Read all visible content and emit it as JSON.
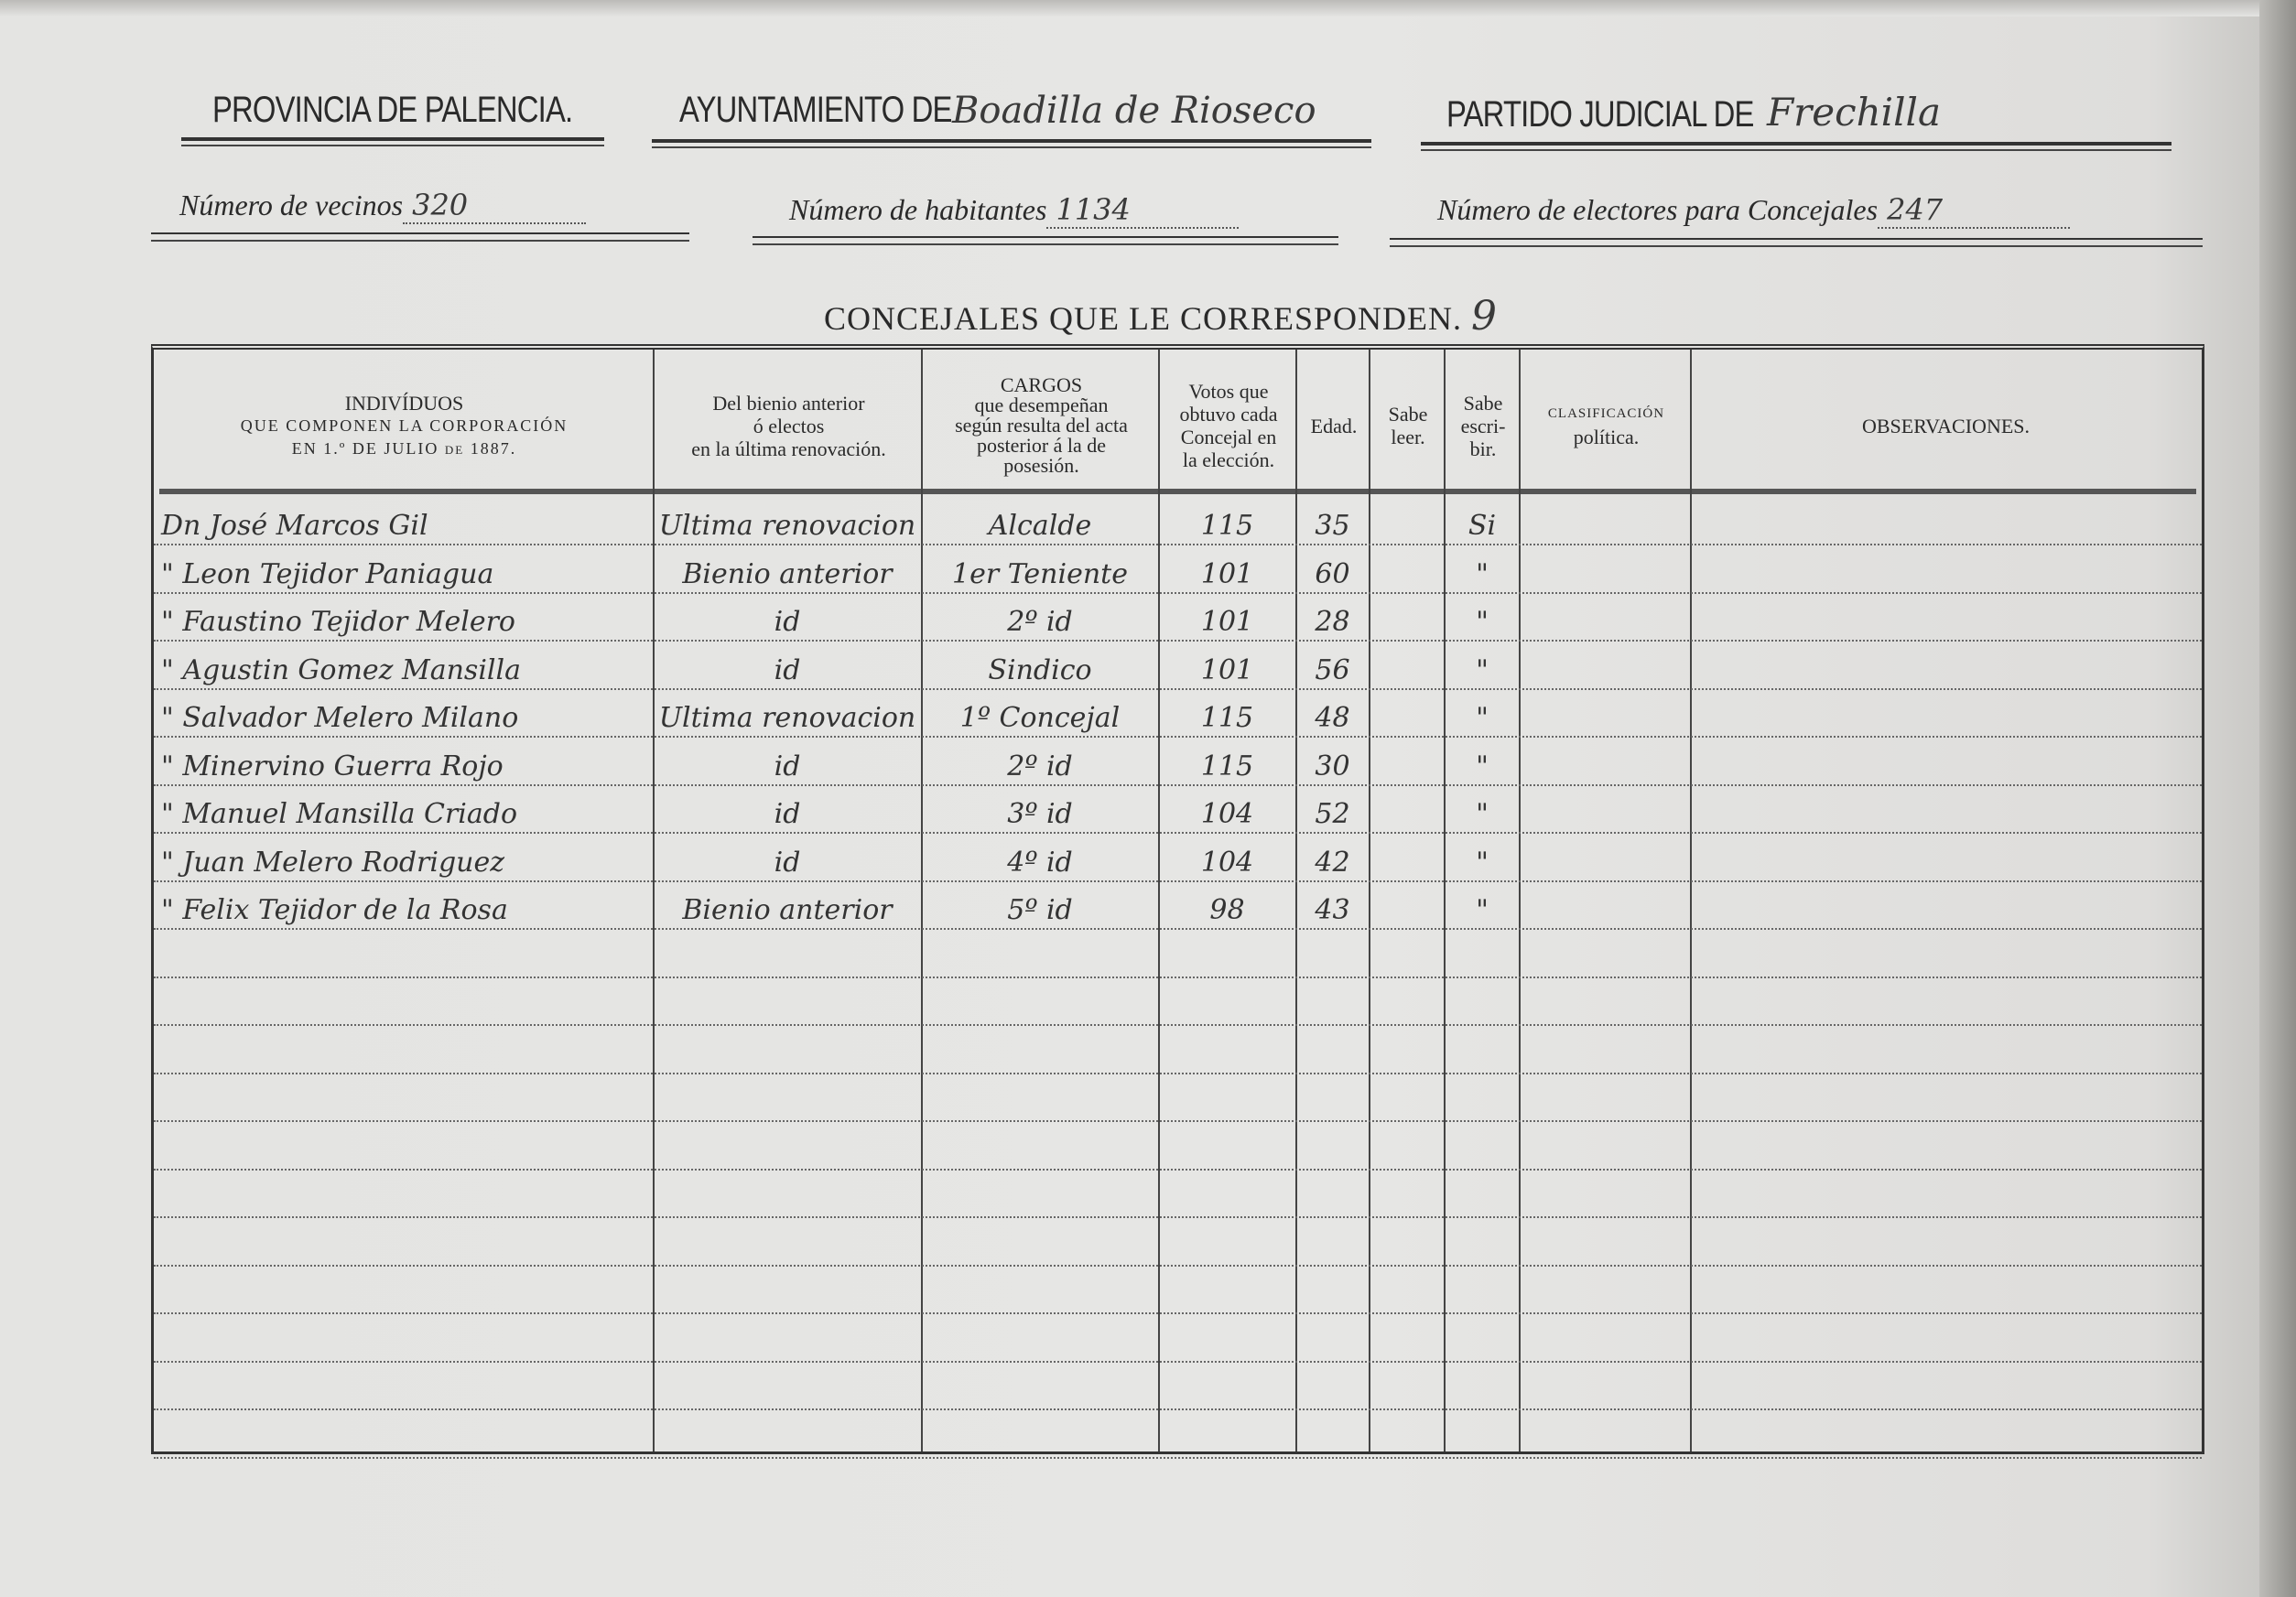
{
  "header": {
    "provincia": "PROVINCIA DE PALENCIA.",
    "ayuntamiento_label": "AYUNTAMIENTO DE",
    "ayuntamiento_value": "Boadilla de Rioseco",
    "partido_label": "PARTIDO JUDICIAL DE",
    "partido_value": "Frechilla"
  },
  "stats": {
    "vecinos_label": "Número de vecinos",
    "vecinos_value": "320",
    "habitantes_label": "Número de habitantes",
    "habitantes_value": "1134",
    "electores_label": "Número de electores para Concejales",
    "electores_value": "247"
  },
  "concejales": {
    "label": "CONCEJALES QUE LE CORRESPONDEN.",
    "value": "9"
  },
  "table": {
    "columns": {
      "individuos": {
        "l1": "INDIVÍDUOS",
        "l2": "QUE COMPONEN LA CORPORACIÓN",
        "l3": "EN 1.º DE JULIO de 1887."
      },
      "bienio": {
        "l1": "Del bienio anterior",
        "l2": "ó electos",
        "l3": "en la última renovación."
      },
      "cargos": {
        "l1": "CARGOS",
        "l2": "que desempeñan",
        "l3": "según resulta del acta",
        "l4": "posterior á la de",
        "l5": "posesión."
      },
      "votos": {
        "l1": "Votos que",
        "l2": "obtuvo cada",
        "l3": "Concejal en",
        "l4": "la elección."
      },
      "edad": {
        "l1": "Edad."
      },
      "leer": {
        "l1": "Sabe",
        "l2": "leer."
      },
      "escribir": {
        "l1": "Sabe",
        "l2": "escri-",
        "l3": "bir."
      },
      "clasificacion": {
        "l1": "CLASIFICACIÓN",
        "l2": "política."
      },
      "observaciones": {
        "l1": "OBSERVACIONES."
      }
    },
    "rows": [
      {
        "nombre": "Dn José Marcos Gil",
        "bienio": "Ultima renovacion",
        "cargo": "Alcalde",
        "votos": "115",
        "edad": "35",
        "escribir": "Si"
      },
      {
        "nombre": "\" Leon Tejidor Paniagua",
        "bienio": "Bienio anterior",
        "cargo": "1er Teniente",
        "votos": "101",
        "edad": "60",
        "escribir": "\""
      },
      {
        "nombre": "\" Faustino Tejidor Melero",
        "bienio": "id",
        "cargo": "2º id",
        "votos": "101",
        "edad": "28",
        "escribir": "\""
      },
      {
        "nombre": "\" Agustin Gomez Mansilla",
        "bienio": "id",
        "cargo": "Sindico",
        "votos": "101",
        "edad": "56",
        "escribir": "\""
      },
      {
        "nombre": "\" Salvador Melero Milano",
        "bienio": "Ultima renovacion",
        "cargo": "1º Concejal",
        "votos": "115",
        "edad": "48",
        "escribir": "\""
      },
      {
        "nombre": "\" Minervino Guerra Rojo",
        "bienio": "id",
        "cargo": "2º id",
        "votos": "115",
        "edad": "30",
        "escribir": "\""
      },
      {
        "nombre": "\" Manuel Mansilla Criado",
        "bienio": "id",
        "cargo": "3º id",
        "votos": "104",
        "edad": "52",
        "escribir": "\""
      },
      {
        "nombre": "\" Juan Melero Rodriguez",
        "bienio": "id",
        "cargo": "4º id",
        "votos": "104",
        "edad": "42",
        "escribir": "\""
      },
      {
        "nombre": "\" Felix Tejidor de la Rosa",
        "bienio": "Bienio anterior",
        "cargo": "5º id",
        "votos": "98",
        "edad": "43",
        "escribir": "\""
      }
    ]
  }
}
